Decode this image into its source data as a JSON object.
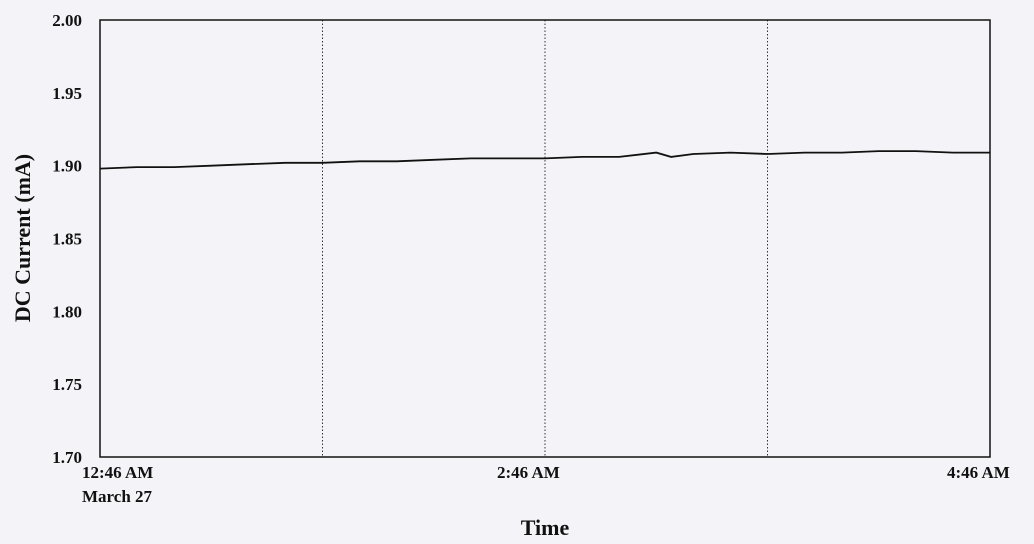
{
  "chart_data": {
    "type": "line",
    "title": "",
    "xlabel": "Time",
    "ylabel": "DC Current (mA)",
    "ylim": [
      1.7,
      2.0
    ],
    "yticks": [
      1.7,
      1.75,
      1.8,
      1.85,
      1.9,
      1.95,
      2.0
    ],
    "ytick_labels": [
      "1.70",
      "1.75",
      "1.80",
      "1.85",
      "1.90",
      "1.95",
      "2.00"
    ],
    "xlim": [
      "12:46 AM",
      "4:46 AM"
    ],
    "xtick_labels": [
      {
        "time": "12:46 AM",
        "sub": "March 27"
      },
      {
        "time": "2:46 AM",
        "sub": ""
      },
      {
        "time": "4:46 AM",
        "sub": ""
      }
    ],
    "grid_x_minutes": [
      60,
      120,
      180
    ],
    "grid": "vertical dotted",
    "line_color": "#111111",
    "series": [
      {
        "name": "",
        "x_minutes": [
          0,
          10,
          20,
          30,
          40,
          50,
          60,
          70,
          80,
          90,
          100,
          110,
          120,
          130,
          140,
          150,
          154,
          160,
          170,
          180,
          190,
          200,
          210,
          220,
          230,
          240
        ],
        "values": [
          1.898,
          1.899,
          1.899,
          1.9,
          1.901,
          1.902,
          1.902,
          1.903,
          1.903,
          1.904,
          1.905,
          1.905,
          1.905,
          1.906,
          1.906,
          1.909,
          1.906,
          1.908,
          1.909,
          1.908,
          1.909,
          1.909,
          1.91,
          1.91,
          1.909,
          1.909
        ]
      }
    ]
  }
}
